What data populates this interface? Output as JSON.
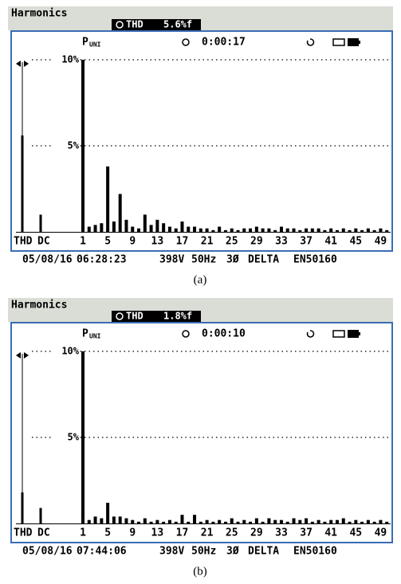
{
  "chart_data": [
    {
      "type": "bar",
      "title": "Harmonics",
      "thd_label": "THD",
      "thd_value": "5.6%f",
      "parameter": "P",
      "parameter_sub": "UNI",
      "elapsed": "0:00:17",
      "categories": [
        "THD",
        "DC",
        "1",
        null,
        null,
        null,
        "5",
        null,
        null,
        null,
        "9",
        null,
        null,
        null,
        "13",
        null,
        null,
        null,
        "17",
        null,
        null,
        null,
        "21",
        null,
        null,
        null,
        "25",
        null,
        null,
        null,
        "29",
        null,
        null,
        null,
        "33",
        null,
        null,
        null,
        "37",
        null,
        null,
        null,
        "41",
        null,
        null,
        null,
        "45",
        null,
        null,
        null,
        "49",
        null
      ],
      "values": [
        5.6,
        1.0,
        10,
        0.3,
        0.4,
        0.5,
        3.8,
        0.6,
        2.2,
        0.7,
        0.3,
        0.2,
        1.0,
        0.4,
        0.7,
        0.5,
        0.3,
        0.2,
        0.6,
        0.3,
        0.3,
        0.2,
        0.2,
        0.1,
        0.3,
        0.1,
        0.2,
        0.1,
        0.2,
        0.2,
        0.3,
        0.2,
        0.2,
        0.1,
        0.3,
        0.2,
        0.2,
        0.1,
        0.2,
        0.2,
        0.2,
        0.1,
        0.2,
        0.1,
        0.2,
        0.1,
        0.2,
        0.1,
        0.2,
        0.1,
        0.2,
        0.1
      ],
      "color": "#000000",
      "ylim": [
        0,
        10
      ],
      "yticks": [
        {
          "value": 5,
          "label": "5%"
        },
        {
          "value": 10,
          "label": "10%"
        }
      ],
      "grid": true,
      "footer": [
        "05/08/16",
        "06:28:23",
        "398V",
        "50Hz",
        "3Ø",
        "DELTA",
        "EN50160"
      ],
      "caption": "(a)"
    },
    {
      "type": "bar",
      "title": "Harmonics",
      "thd_label": "THD",
      "thd_value": "1.8%f",
      "parameter": "P",
      "parameter_sub": "UNI",
      "elapsed": "0:00:10",
      "categories": [
        "THD",
        "DC",
        "1",
        null,
        null,
        null,
        "5",
        null,
        null,
        null,
        "9",
        null,
        null,
        null,
        "13",
        null,
        null,
        null,
        "17",
        null,
        null,
        null,
        "21",
        null,
        null,
        null,
        "25",
        null,
        null,
        null,
        "29",
        null,
        null,
        null,
        "33",
        null,
        null,
        null,
        "37",
        null,
        null,
        null,
        "41",
        null,
        null,
        null,
        "45",
        null,
        null,
        null,
        "49",
        null
      ],
      "values": [
        1.8,
        0.9,
        10,
        0.2,
        0.4,
        0.3,
        1.2,
        0.4,
        0.4,
        0.3,
        0.2,
        0.1,
        0.3,
        0.1,
        0.2,
        0.1,
        0.2,
        0.1,
        0.5,
        0.1,
        0.5,
        0.1,
        0.2,
        0.1,
        0.2,
        0.1,
        0.3,
        0.1,
        0.2,
        0.1,
        0.3,
        0.1,
        0.3,
        0.2,
        0.2,
        0.1,
        0.3,
        0.2,
        0.3,
        0.1,
        0.2,
        0.1,
        0.2,
        0.2,
        0.3,
        0.1,
        0.2,
        0.1,
        0.2,
        0.1,
        0.2,
        0.1
      ],
      "color": "#000000",
      "ylim": [
        0,
        10
      ],
      "yticks": [
        {
          "value": 5,
          "label": "5%"
        },
        {
          "value": 10,
          "label": "10%"
        }
      ],
      "grid": true,
      "footer": [
        "05/08/16",
        "07:44:06",
        "398V",
        "50Hz",
        "3Ø",
        "DELTA",
        "EN50160"
      ],
      "caption": "(b)"
    }
  ]
}
